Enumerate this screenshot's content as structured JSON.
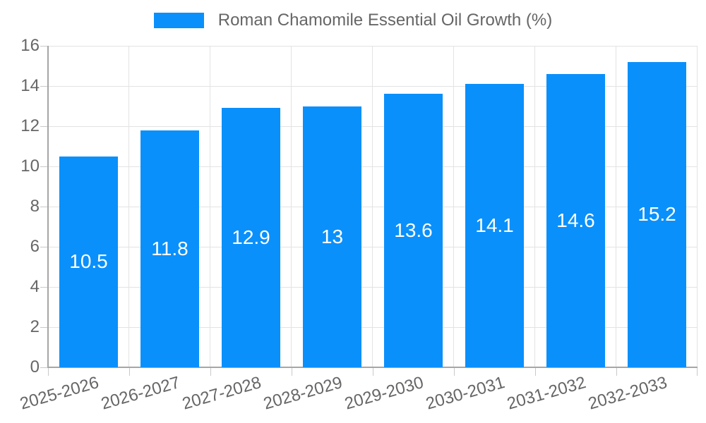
{
  "legend": {
    "label": "Roman Chamomile Essential Oil Growth (%)"
  },
  "chart_data": {
    "type": "bar",
    "title": "Roman Chamomile Essential Oil Growth (%)",
    "categories": [
      "2025-2026",
      "2026-2027",
      "2027-2028",
      "2028-2029",
      "2029-2030",
      "2030-2031",
      "2031-2032",
      "2032-2033"
    ],
    "series": [
      {
        "name": "Roman Chamomile Essential Oil Growth (%)",
        "values": [
          10.5,
          11.8,
          12.9,
          13,
          13.6,
          14.1,
          14.6,
          15.2
        ]
      }
    ],
    "value_labels": [
      "10.5",
      "11.8",
      "12.9",
      "13",
      "13.6",
      "14.1",
      "14.6",
      "15.2"
    ],
    "xlabel": "",
    "ylabel": "",
    "ylim": [
      0,
      16
    ],
    "yticks": [
      0,
      2,
      4,
      6,
      8,
      10,
      12,
      14,
      16
    ],
    "grid": true,
    "legend_position": "top-center",
    "x_tick_rotation_deg": -16,
    "colors": {
      "bar": "#0a90fb",
      "grid_line": "#e3e3e3",
      "axis_line": "#a6a6a6",
      "tick_mark": "#c9c9c9",
      "axis_text": "#666666",
      "value_label_text": "#ffffff",
      "background": "#ffffff"
    }
  }
}
